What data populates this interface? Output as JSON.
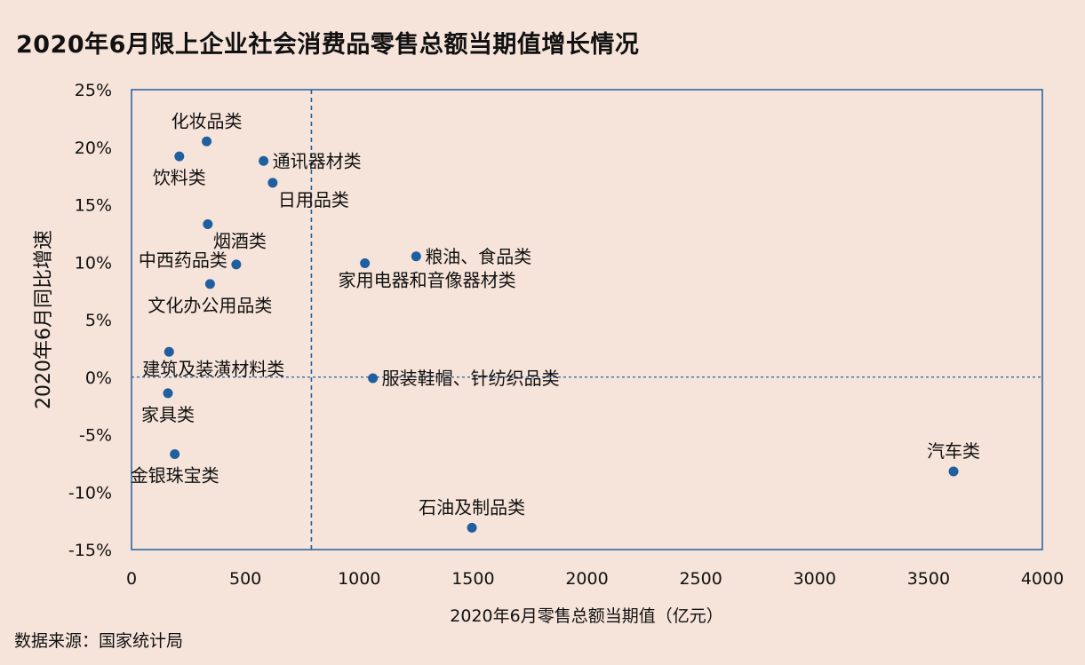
{
  "title": "2020年6月限上企业社会消费品零售总额当期值增长情况",
  "source": "数据来源：国家统计局",
  "colors": {
    "background": "#f6e4da",
    "point": "#1f5fa0",
    "frame": "#1f5fa0",
    "reference_line": "#1f5fa0"
  },
  "chart_data": {
    "type": "scatter",
    "title": "2020年6月限上企业社会消费品零售总额当期值增长情况",
    "xlabel": "2020年6月零售总额当期值（亿元）",
    "ylabel": "2020年6月同比增速",
    "xlim": [
      0,
      4000
    ],
    "ylim": [
      -15,
      25
    ],
    "x_ticks": [
      0,
      500,
      1000,
      1500,
      2000,
      2500,
      3000,
      3500,
      4000
    ],
    "x_tick_labels": [
      "0",
      "500",
      "1000",
      "1500",
      "2000",
      "2500",
      "3000",
      "3500",
      "4000"
    ],
    "y_ticks": [
      25,
      20,
      15,
      10,
      5,
      0,
      -5,
      -10,
      -15
    ],
    "y_tick_labels": [
      "25%",
      "20%",
      "15%",
      "10%",
      "5%",
      "0%",
      "-5%",
      "-10%",
      "-15%"
    ],
    "reference_lines": {
      "x": 790,
      "y": 0
    },
    "grid": false,
    "points": [
      {
        "label": "化妆品类",
        "x": 330,
        "y": 20.5,
        "label_pos": "above"
      },
      {
        "label": "饮料类",
        "x": 210,
        "y": 19.2,
        "label_pos": "below"
      },
      {
        "label": "通讯器材类",
        "x": 580,
        "y": 18.8,
        "label_pos": "right"
      },
      {
        "label": "日用品类",
        "x": 620,
        "y": 16.9,
        "label_pos": "below-right"
      },
      {
        "label": "烟酒类",
        "x": 335,
        "y": 13.3,
        "label_pos": "below-right"
      },
      {
        "label": "中西药品类",
        "x": 460,
        "y": 9.8,
        "label_pos": "left"
      },
      {
        "label": "粮油、食品类",
        "x": 1250,
        "y": 10.5,
        "label_pos": "right"
      },
      {
        "label": "家用电器和音像器材类",
        "x": 1025,
        "y": 9.9,
        "label_pos": "below-right"
      },
      {
        "label": "文化办公用品类",
        "x": 345,
        "y": 8.1,
        "label_pos": "below"
      },
      {
        "label": "建筑及装潢材料类",
        "x": 165,
        "y": 2.2,
        "label_pos": "below-right"
      },
      {
        "label": "服装鞋帽、针纺织品类",
        "x": 1060,
        "y": -0.1,
        "label_pos": "right"
      },
      {
        "label": "家具类",
        "x": 160,
        "y": -1.4,
        "label_pos": "below"
      },
      {
        "label": "汽车类",
        "x": 3610,
        "y": -8.2,
        "label_pos": "above"
      },
      {
        "label": "金银珠宝类",
        "x": 190,
        "y": -6.7,
        "label_pos": "below"
      },
      {
        "label": "石油及制品类",
        "x": 1495,
        "y": -13.1,
        "label_pos": "above"
      }
    ]
  }
}
